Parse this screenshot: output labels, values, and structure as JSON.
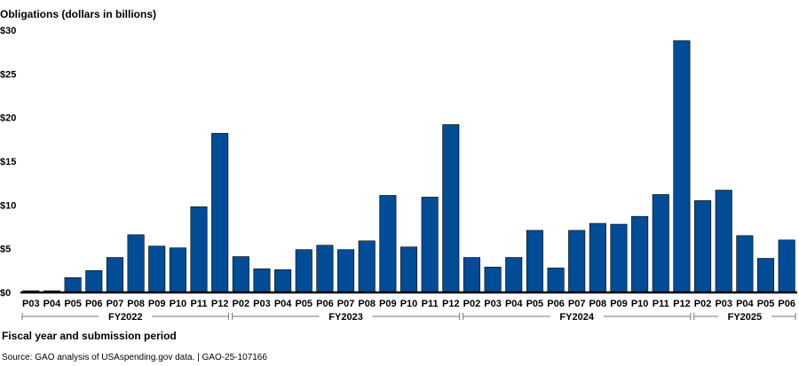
{
  "chart_data": {
    "type": "bar",
    "ylabel": "Obligations (dollars in billions)",
    "xlabel": "Fiscal year and submission period",
    "ylim": [
      0,
      30
    ],
    "yticks": [
      "$0",
      "$5",
      "$10",
      "$15",
      "$20",
      "$25",
      "$30"
    ],
    "grid": false,
    "bar_color": "#004c97",
    "categories": [
      "P03",
      "P04",
      "P05",
      "P06",
      "P07",
      "P08",
      "P09",
      "P10",
      "P11",
      "P12",
      "P02",
      "P03",
      "P04",
      "P05",
      "P06",
      "P07",
      "P08",
      "P09",
      "P10",
      "P11",
      "P12",
      "P02",
      "P03",
      "P04",
      "P05",
      "P06",
      "P07",
      "P08",
      "P09",
      "P10",
      "P11",
      "P12",
      "P02",
      "P03",
      "P04",
      "P05",
      "P06"
    ],
    "values": [
      0.2,
      0.2,
      1.7,
      2.5,
      4.0,
      6.6,
      5.3,
      5.1,
      9.8,
      18.2,
      4.1,
      2.7,
      2.6,
      4.9,
      5.4,
      4.9,
      5.9,
      11.1,
      5.2,
      10.9,
      19.2,
      4.0,
      2.9,
      4.0,
      7.1,
      2.8,
      7.1,
      7.9,
      7.8,
      8.7,
      11.2,
      28.8,
      10.5,
      11.7,
      6.5,
      3.9,
      6.0
    ],
    "groups": [
      {
        "label": "FY2022",
        "start": 0,
        "end": 9
      },
      {
        "label": "FY2023",
        "start": 10,
        "end": 20
      },
      {
        "label": "FY2024",
        "start": 21,
        "end": 31
      },
      {
        "label": "FY2025",
        "start": 32,
        "end": 36
      }
    ]
  },
  "source": "Source: GAO analysis of USAspending.gov data.  |  GAO-25-107166"
}
